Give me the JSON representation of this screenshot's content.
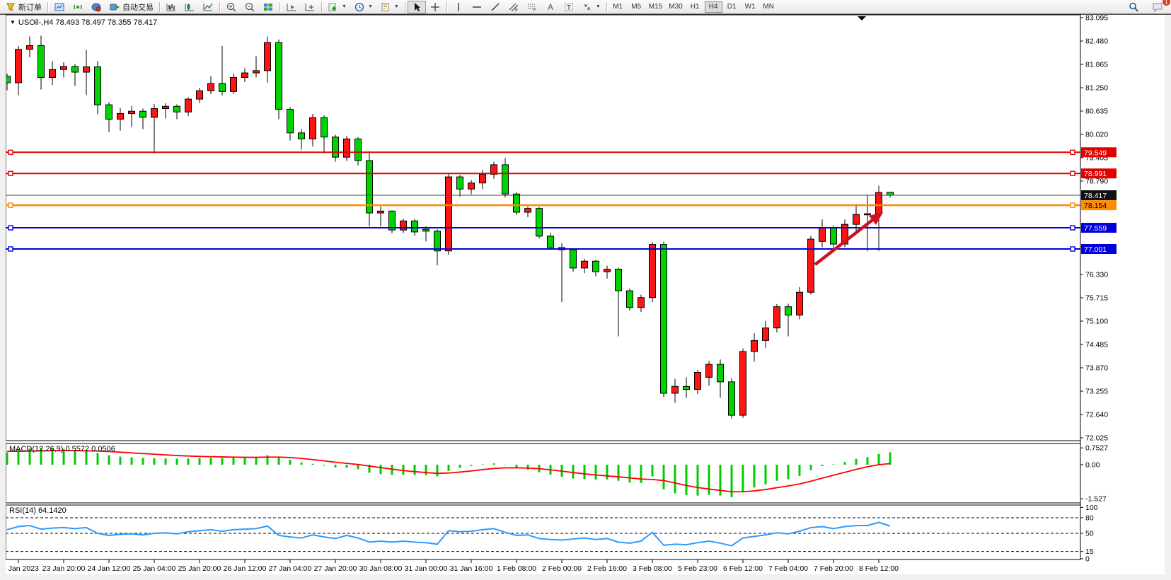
{
  "toolbar": {
    "new_order_label": "新订单",
    "autotrade_label": "自动交易",
    "timeframes": [
      "M1",
      "M5",
      "M15",
      "M30",
      "H1",
      "H4",
      "D1",
      "W1",
      "MN"
    ],
    "active_timeframe": "H4",
    "chat_badge": "1",
    "icons": [
      "new-order-icon",
      "chart-window-icon",
      "market-watch-icon",
      "navigator-icon",
      "autotrading-icon",
      "bar-chart-icon",
      "candlestick-chart-icon",
      "line-chart-icon",
      "zoom-in-icon",
      "zoom-out-icon",
      "tile-windows-icon",
      "auto-scroll-icon",
      "chart-shift-icon",
      "indicators-add-icon",
      "periods-clock-icon",
      "templates-icon",
      "cursor-icon",
      "crosshair-icon",
      "vertical-line-icon",
      "horizontal-line-icon",
      "trendline-icon",
      "channel-icon",
      "fibonacci-icon",
      "text-icon",
      "text-label-icon",
      "arrows-icon",
      "search-icon",
      "chat-icon"
    ]
  },
  "chart": {
    "readout": "USOil-,H4  78.493 78.497 78.355 78.417",
    "symbol": "USOil-",
    "period": "H4",
    "indicator_labels": {
      "macd": "MACD(12,26,9) 0.5572 0.0506",
      "rsi": "RSI(14) 64.1420"
    },
    "price_ticks": [
      "83.095",
      "82.480",
      "81.865",
      "81.250",
      "80.635",
      "80.020",
      "79.405",
      "78.790",
      "76.330",
      "75.715",
      "75.100",
      "74.485",
      "73.870",
      "73.255",
      "72.640",
      "72.025"
    ],
    "macd_ticks": [
      "0.7527",
      "0.00",
      "-1.527"
    ],
    "rsi_ticks": [
      "100",
      "80",
      "50",
      "15",
      "0"
    ],
    "time_labels": [
      "23 Jan 2023",
      "23 Jan 20:00",
      "24 Jan 12:00",
      "25 Jan 04:00",
      "25 Jan 20:00",
      "26 Jan 12:00",
      "27 Jan 04:00",
      "27 Jan 20:00",
      "30 Jan 08:00",
      "31 Jan 00:00",
      "31 Jan 16:00",
      "1 Feb 08:00",
      "2 Feb 00:00",
      "2 Feb 16:00",
      "3 Feb 08:00",
      "5 Feb 23:00",
      "6 Feb 12:00",
      "7 Feb 04:00",
      "7 Feb 20:00",
      "8 Feb 12:00"
    ],
    "price_tags": [
      {
        "label": "79.549",
        "price": 79.549,
        "bg": "#e00000",
        "fg": "#ffffff",
        "line": "#e00000",
        "lw": 2,
        "handles": true
      },
      {
        "label": "78.991",
        "price": 78.991,
        "bg": "#e00000",
        "fg": "#ffffff",
        "line": "#e00000",
        "lw": 2,
        "handles": true
      },
      {
        "label": "78.417",
        "price": 78.417,
        "bg": "#111111",
        "fg": "#ffffff",
        "line": "#444444",
        "lw": 1,
        "handles": false
      },
      {
        "label": "78.154",
        "price": 78.154,
        "bg": "#ff8c00",
        "fg": "#000000",
        "line": "#ff8c00",
        "lw": 2.5,
        "handles": true
      },
      {
        "label": "77.559",
        "price": 77.559,
        "bg": "#0000d8",
        "fg": "#ffffff",
        "line": "#0000d8",
        "lw": 2,
        "handles": true
      },
      {
        "label": "77.001",
        "price": 77.001,
        "bg": "#0000d8",
        "fg": "#ffffff",
        "line": "#0000d8",
        "lw": 2,
        "handles": true
      }
    ]
  },
  "chart_data": {
    "type": "candlestick",
    "title": "USOil- H4 with MACD(12,26,9) and RSI(14)",
    "symbol": "USOil-",
    "timeframe": "H4",
    "x_range": [
      "23 Jan 2023 00:00",
      "8 Feb 2023 16:00"
    ],
    "price_axis_range": [
      72.025,
      83.095
    ],
    "current_ohlc": {
      "open": 78.493,
      "high": 78.497,
      "low": 78.355,
      "close": 78.417
    },
    "bull_color": "#ff1414",
    "bear_color": "#00d300",
    "horizontal_levels": [
      79.549,
      78.991,
      78.154,
      77.559,
      77.001
    ],
    "current_price_line": 78.417,
    "candles": [
      [
        81.55,
        81.62,
        81.18,
        81.38
      ],
      [
        81.38,
        82.35,
        81.05,
        82.26
      ],
      [
        82.26,
        82.6,
        82.05,
        82.36
      ],
      [
        82.36,
        82.62,
        81.2,
        81.52
      ],
      [
        81.52,
        81.95,
        81.32,
        81.73
      ],
      [
        81.73,
        81.92,
        81.52,
        81.81
      ],
      [
        81.81,
        81.87,
        81.3,
        81.66
      ],
      [
        81.66,
        82.25,
        81.06,
        81.8
      ],
      [
        81.8,
        81.95,
        80.55,
        80.8
      ],
      [
        80.8,
        80.87,
        80.08,
        80.42
      ],
      [
        80.42,
        80.72,
        80.12,
        80.57
      ],
      [
        80.57,
        80.77,
        80.22,
        80.63
      ],
      [
        80.63,
        80.7,
        80.16,
        80.47
      ],
      [
        80.47,
        80.82,
        79.52,
        80.7
      ],
      [
        80.7,
        80.84,
        80.44,
        80.76
      ],
      [
        80.76,
        80.81,
        80.42,
        80.61
      ],
      [
        80.61,
        81.0,
        80.5,
        80.95
      ],
      [
        80.95,
        81.25,
        80.85,
        81.17
      ],
      [
        81.17,
        81.55,
        81.08,
        81.36
      ],
      [
        81.36,
        82.35,
        81.05,
        81.15
      ],
      [
        81.15,
        81.62,
        81.08,
        81.52
      ],
      [
        81.52,
        81.76,
        81.4,
        81.64
      ],
      [
        81.64,
        82.08,
        81.52,
        81.7
      ],
      [
        81.7,
        82.6,
        81.38,
        82.44
      ],
      [
        82.44,
        82.52,
        80.42,
        80.68
      ],
      [
        80.68,
        80.74,
        79.86,
        80.06
      ],
      [
        80.06,
        80.16,
        79.62,
        79.9
      ],
      [
        79.9,
        80.56,
        79.7,
        80.46
      ],
      [
        80.46,
        80.52,
        79.52,
        79.95
      ],
      [
        79.95,
        80.01,
        79.3,
        79.42
      ],
      [
        79.42,
        79.98,
        79.32,
        79.9
      ],
      [
        79.9,
        79.95,
        79.2,
        79.33
      ],
      [
        79.33,
        79.58,
        77.6,
        77.95
      ],
      [
        77.95,
        78.12,
        77.6,
        78.0
      ],
      [
        78.0,
        78.02,
        77.42,
        77.5
      ],
      [
        77.5,
        77.8,
        77.42,
        77.74
      ],
      [
        77.74,
        77.79,
        77.35,
        77.45
      ],
      [
        77.52,
        77.6,
        77.2,
        77.47
      ],
      [
        77.47,
        77.52,
        76.57,
        76.95
      ],
      [
        76.95,
        78.98,
        76.85,
        78.9
      ],
      [
        78.9,
        78.95,
        78.38,
        78.58
      ],
      [
        78.58,
        78.82,
        78.44,
        78.74
      ],
      [
        78.74,
        79.08,
        78.58,
        78.97
      ],
      [
        78.97,
        79.3,
        78.85,
        79.22
      ],
      [
        79.22,
        79.4,
        78.36,
        78.45
      ],
      [
        78.45,
        78.5,
        77.9,
        77.97
      ],
      [
        77.97,
        78.12,
        77.84,
        78.07
      ],
      [
        78.07,
        78.11,
        77.28,
        77.34
      ],
      [
        77.34,
        77.42,
        76.98,
        77.04
      ],
      [
        77.04,
        77.16,
        75.6,
        76.98
      ],
      [
        76.98,
        77.02,
        76.4,
        76.5
      ],
      [
        76.5,
        76.74,
        76.36,
        76.68
      ],
      [
        76.68,
        76.72,
        76.28,
        76.4
      ],
      [
        76.4,
        76.56,
        76.22,
        76.47
      ],
      [
        76.47,
        76.52,
        74.7,
        75.9
      ],
      [
        75.9,
        75.96,
        75.38,
        75.46
      ],
      [
        75.46,
        75.8,
        75.34,
        75.72
      ],
      [
        75.72,
        77.18,
        75.6,
        77.12
      ],
      [
        77.12,
        77.2,
        73.1,
        73.2
      ],
      [
        73.2,
        73.58,
        72.95,
        73.38
      ],
      [
        73.38,
        73.62,
        73.08,
        73.3
      ],
      [
        73.3,
        73.82,
        73.18,
        73.75
      ],
      [
        73.62,
        74.05,
        73.4,
        73.96
      ],
      [
        73.96,
        74.09,
        73.08,
        73.5
      ],
      [
        73.5,
        73.6,
        72.53,
        72.62
      ],
      [
        72.62,
        74.38,
        72.55,
        74.3
      ],
      [
        74.3,
        74.78,
        74.03,
        74.59
      ],
      [
        74.59,
        75.11,
        74.4,
        74.92
      ],
      [
        74.92,
        75.55,
        74.8,
        75.48
      ],
      [
        75.48,
        75.56,
        74.7,
        75.26
      ],
      [
        75.26,
        76.0,
        75.15,
        75.86
      ],
      [
        75.86,
        77.35,
        75.8,
        77.26
      ],
      [
        77.2,
        77.78,
        77.05,
        77.56
      ],
      [
        77.56,
        77.62,
        76.95,
        77.13
      ],
      [
        77.13,
        77.78,
        77.05,
        77.65
      ],
      [
        77.65,
        78.19,
        77.48,
        77.91
      ],
      [
        77.91,
        78.43,
        76.94,
        77.93
      ],
      [
        77.93,
        78.67,
        76.95,
        78.49
      ],
      [
        78.493,
        78.497,
        78.355,
        78.417
      ]
    ],
    "indicators": {
      "macd": {
        "params": [
          12,
          26,
          9
        ],
        "value": 0.5572,
        "signal_value": 0.0506,
        "axis_range": [
          -1.527,
          0.7527
        ],
        "hist_color": "#00cc00",
        "signal_color": "#ff0000",
        "histogram": [
          0.55,
          0.65,
          0.72,
          0.75,
          0.73,
          0.7,
          0.66,
          0.62,
          0.52,
          0.42,
          0.36,
          0.33,
          0.3,
          0.29,
          0.28,
          0.27,
          0.28,
          0.29,
          0.31,
          0.3,
          0.31,
          0.32,
          0.34,
          0.42,
          0.36,
          0.22,
          0.1,
          0.04,
          -0.04,
          -0.12,
          -0.14,
          -0.2,
          -0.36,
          -0.42,
          -0.46,
          -0.45,
          -0.46,
          -0.47,
          -0.52,
          -0.28,
          -0.14,
          -0.05,
          0.02,
          0.06,
          -0.02,
          -0.14,
          -0.22,
          -0.34,
          -0.44,
          -0.54,
          -0.62,
          -0.64,
          -0.67,
          -0.66,
          -0.72,
          -0.8,
          -0.82,
          -0.52,
          -1.1,
          -1.28,
          -1.36,
          -1.38,
          -1.35,
          -1.38,
          -1.45,
          -1.22,
          -1.02,
          -0.88,
          -0.72,
          -0.65,
          -0.5,
          -0.24,
          -0.06,
          0.02,
          0.12,
          0.26,
          0.34,
          0.48,
          0.5572
        ],
        "signal": [
          0.6,
          0.6,
          0.61,
          0.62,
          0.63,
          0.63,
          0.63,
          0.62,
          0.61,
          0.59,
          0.56,
          0.53,
          0.5,
          0.47,
          0.44,
          0.41,
          0.39,
          0.37,
          0.36,
          0.35,
          0.34,
          0.33,
          0.33,
          0.34,
          0.34,
          0.32,
          0.28,
          0.23,
          0.17,
          0.11,
          0.06,
          0.01,
          -0.06,
          -0.13,
          -0.2,
          -0.26,
          -0.31,
          -0.35,
          -0.39,
          -0.37,
          -0.33,
          -0.28,
          -0.22,
          -0.17,
          -0.14,
          -0.14,
          -0.15,
          -0.18,
          -0.23,
          -0.29,
          -0.35,
          -0.41,
          -0.46,
          -0.5,
          -0.54,
          -0.59,
          -0.64,
          -0.66,
          -0.71,
          -0.82,
          -0.93,
          -1.02,
          -1.09,
          -1.15,
          -1.21,
          -1.21,
          -1.17,
          -1.11,
          -1.03,
          -0.95,
          -0.86,
          -0.74,
          -0.6,
          -0.47,
          -0.34,
          -0.21,
          -0.09,
          0.0,
          0.0506
        ]
      },
      "rsi": {
        "period": 14,
        "value": 64.142,
        "levels": [
          80,
          50,
          15
        ],
        "axis_range": [
          0,
          100
        ],
        "color": "#2e9bff",
        "values": [
          57,
          63,
          65,
          58,
          60,
          61,
          59,
          61,
          50,
          46,
          48,
          49,
          47,
          50,
          51,
          49,
          53,
          55,
          57,
          54,
          57,
          58,
          59,
          64,
          46,
          43,
          41,
          47,
          43,
          40,
          46,
          41,
          33,
          35,
          33,
          35,
          33,
          32,
          29,
          55,
          53,
          54,
          57,
          59,
          52,
          46,
          47,
          40,
          38,
          37,
          39,
          41,
          38,
          40,
          33,
          31,
          35,
          52,
          27,
          29,
          28,
          32,
          35,
          31,
          26,
          41,
          44,
          47,
          51,
          49,
          54,
          61,
          63,
          59,
          63,
          65,
          65,
          71,
          64.142
        ]
      }
    },
    "annotations": [
      {
        "type": "arrow",
        "color": "#cf1020",
        "direction": "up-right",
        "note": "bullish continuation arrow drawn on chart"
      }
    ]
  }
}
